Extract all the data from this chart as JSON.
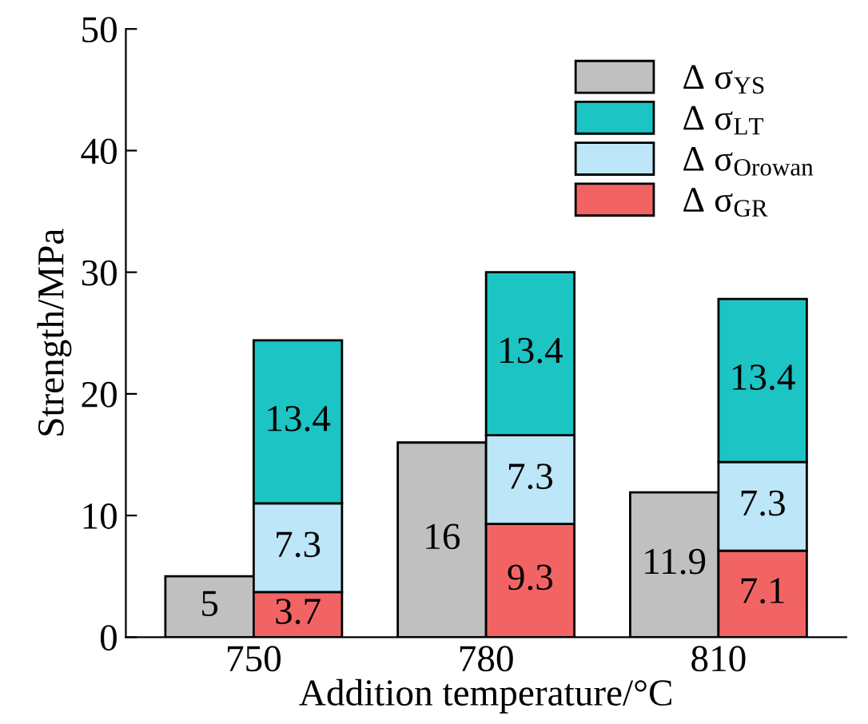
{
  "chart_data": {
    "type": "bar",
    "xlabel": "Addition temperature/°C",
    "ylabel": "Strength/MPa",
    "categories": [
      "750",
      "780",
      "810"
    ],
    "series": [
      {
        "name": "Δ σ$_{YS}$",
        "color": "#c0c0c0",
        "values": [
          5,
          16,
          11.9
        ]
      },
      {
        "name": "Δ σ$_{GR}$",
        "color": "#f26464",
        "values": [
          3.7,
          9.3,
          7.1
        ],
        "base": [
          0,
          0,
          0
        ]
      },
      {
        "name": "Δ σ$_{Orowan}$",
        "color": "#bde6f8",
        "values": [
          7.3,
          7.3,
          7.3
        ],
        "base": [
          3.7,
          9.3,
          7.1
        ]
      },
      {
        "name": "Δ σ$_{LT}$",
        "color": "#1cc4c4",
        "values": [
          13.4,
          13.4,
          13.4
        ],
        "base": [
          11,
          16.6,
          14.4
        ]
      }
    ],
    "data_labels": true,
    "ylim": [
      0,
      50
    ],
    "yticks": [
      0,
      10,
      20,
      30,
      40,
      50
    ],
    "legend": "top right",
    "grid": false
  }
}
